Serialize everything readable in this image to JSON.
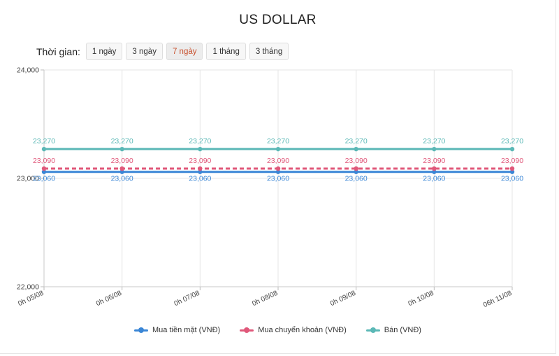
{
  "title": "US DOLLAR",
  "period": {
    "label": "Thời gian:",
    "options": [
      "1 ngày",
      "3 ngày",
      "7 ngày",
      "1 tháng",
      "3 tháng"
    ],
    "selected_index": 2
  },
  "colors": {
    "cash_buy": "#3a86d6",
    "transfer_buy": "#e0587a",
    "sell": "#5bb8b6",
    "grid": "#e5e5e5",
    "active_period_text": "#c8502d"
  },
  "chart_data": {
    "type": "line",
    "title": "",
    "xlabel": "",
    "ylabel": "",
    "categories": [
      "0h 05/08",
      "0h 06/08",
      "0h 07/08",
      "0h 08/08",
      "0h 09/08",
      "0h 10/08",
      "06h 11/08"
    ],
    "ylim": [
      22000,
      24000
    ],
    "yticks": [
      "22,000",
      "23,000",
      "24,000"
    ],
    "grid": true,
    "legend_position": "bottom",
    "series": [
      {
        "name": "Mua tiền mặt (VNĐ)",
        "key": "cash_buy",
        "style": "solid",
        "values": [
          23060,
          23060,
          23060,
          23060,
          23060,
          23060,
          23060
        ],
        "labels": [
          "23,060",
          "23,060",
          "23,060",
          "23,060",
          "23,060",
          "23,060",
          "23,060"
        ]
      },
      {
        "name": "Mua chuyển khoản (VNĐ)",
        "key": "transfer_buy",
        "style": "dashed",
        "values": [
          23090,
          23090,
          23090,
          23090,
          23090,
          23090,
          23090
        ],
        "labels": [
          "23,090",
          "23,090",
          "23,090",
          "23,090",
          "23,090",
          "23,090",
          "23,090"
        ]
      },
      {
        "name": "Bán (VNĐ)",
        "key": "sell",
        "style": "solid",
        "values": [
          23270,
          23270,
          23270,
          23270,
          23270,
          23270,
          23270
        ],
        "labels": [
          "23,270",
          "23,270",
          "23,270",
          "23,270",
          "23,270",
          "23,270",
          "23,270"
        ]
      }
    ]
  }
}
